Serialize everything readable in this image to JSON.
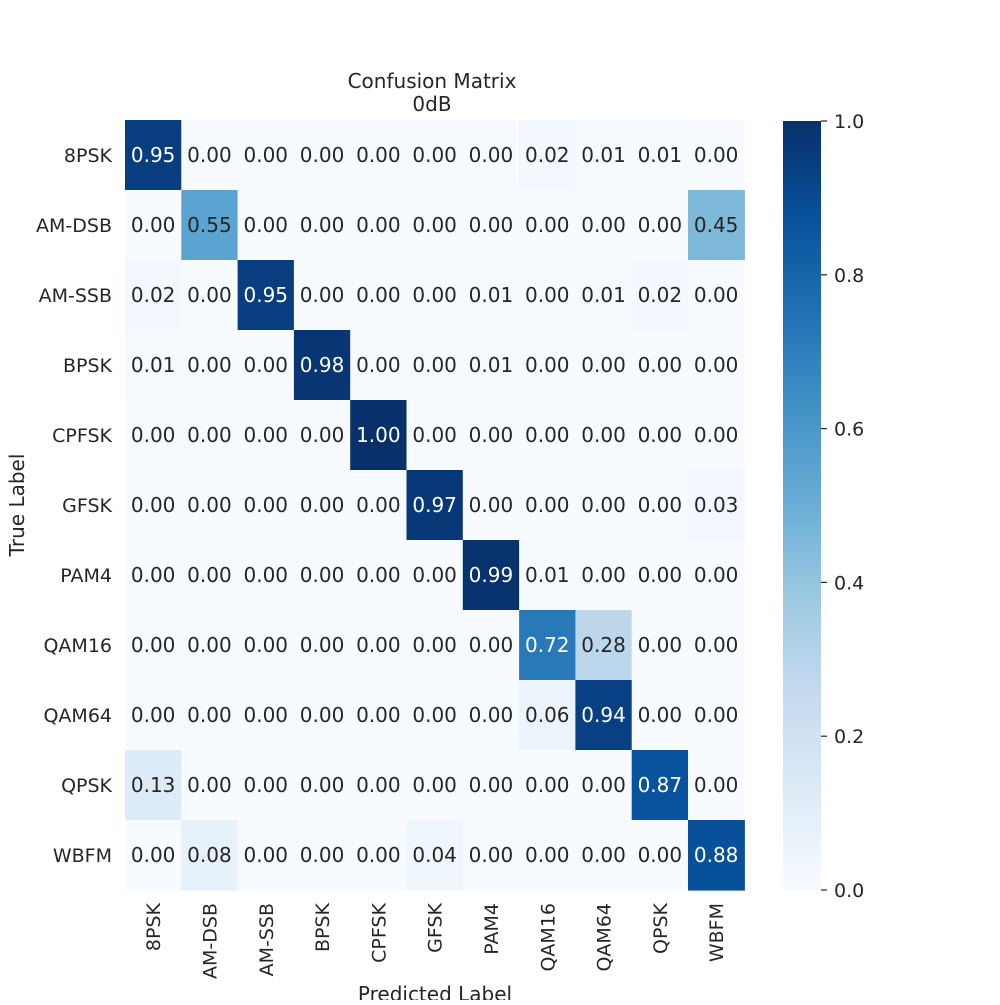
{
  "chart_data": {
    "type": "heatmap",
    "title": "Confusion Matrix",
    "subtitle": "0dB",
    "xlabel": "Predicted Label",
    "ylabel": "True Label",
    "x_categories": [
      "8PSK",
      "AM-DSB",
      "AM-SSB",
      "BPSK",
      "CPFSK",
      "GFSK",
      "PAM4",
      "QAM16",
      "QAM64",
      "QPSK",
      "WBFM"
    ],
    "y_categories": [
      "8PSK",
      "AM-DSB",
      "AM-SSB",
      "BPSK",
      "CPFSK",
      "GFSK",
      "PAM4",
      "QAM16",
      "QAM64",
      "QPSK",
      "WBFM"
    ],
    "values": [
      [
        0.95,
        0.0,
        0.0,
        0.0,
        0.0,
        0.0,
        0.0,
        0.02,
        0.01,
        0.01,
        0.0
      ],
      [
        0.0,
        0.55,
        0.0,
        0.0,
        0.0,
        0.0,
        0.0,
        0.0,
        0.0,
        0.0,
        0.45
      ],
      [
        0.02,
        0.0,
        0.95,
        0.0,
        0.0,
        0.0,
        0.01,
        0.0,
        0.01,
        0.02,
        0.0
      ],
      [
        0.01,
        0.0,
        0.0,
        0.98,
        0.0,
        0.0,
        0.01,
        0.0,
        0.0,
        0.0,
        0.0
      ],
      [
        0.0,
        0.0,
        0.0,
        0.0,
        1.0,
        0.0,
        0.0,
        0.0,
        0.0,
        0.0,
        0.0
      ],
      [
        0.0,
        0.0,
        0.0,
        0.0,
        0.0,
        0.97,
        0.0,
        0.0,
        0.0,
        0.0,
        0.03
      ],
      [
        0.0,
        0.0,
        0.0,
        0.0,
        0.0,
        0.0,
        0.99,
        0.01,
        0.0,
        0.0,
        0.0
      ],
      [
        0.0,
        0.0,
        0.0,
        0.0,
        0.0,
        0.0,
        0.0,
        0.72,
        0.28,
        0.0,
        0.0
      ],
      [
        0.0,
        0.0,
        0.0,
        0.0,
        0.0,
        0.0,
        0.0,
        0.06,
        0.94,
        0.0,
        0.0
      ],
      [
        0.13,
        0.0,
        0.0,
        0.0,
        0.0,
        0.0,
        0.0,
        0.0,
        0.0,
        0.87,
        0.0
      ],
      [
        0.0,
        0.08,
        0.0,
        0.0,
        0.0,
        0.04,
        0.0,
        0.0,
        0.0,
        0.0,
        0.88
      ]
    ],
    "colorbar": {
      "min": 0.0,
      "max": 1.0,
      "ticks": [
        "0.0",
        "0.2",
        "0.4",
        "0.6",
        "0.8",
        "1.0"
      ],
      "colormap": "Blues"
    },
    "value_format": "0.00",
    "grid": false
  }
}
